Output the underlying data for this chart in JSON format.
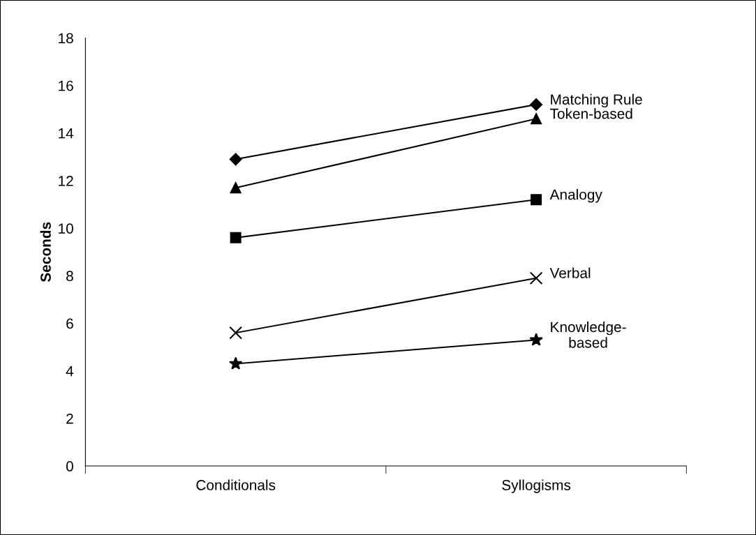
{
  "chart_data": {
    "type": "line",
    "ylabel": "Seconds",
    "categories": [
      "Conditionals",
      "Syllogisms"
    ],
    "ylim": [
      0,
      18
    ],
    "yticks": [
      0,
      2,
      4,
      6,
      8,
      10,
      12,
      14,
      16,
      18
    ],
    "grid": false,
    "legend": false,
    "series": [
      {
        "name": "Matching Rule",
        "color": "#000000",
        "marker": "diamond",
        "values": [
          12.9,
          15.2
        ]
      },
      {
        "name": "Token-based",
        "color": "#000000",
        "marker": "triangle",
        "values": [
          11.7,
          14.6
        ]
      },
      {
        "name": "Analogy",
        "color": "#000000",
        "marker": "square",
        "values": [
          9.6,
          11.2
        ]
      },
      {
        "name": "Verbal",
        "color": "#000000",
        "marker": "cross",
        "values": [
          5.6,
          7.9
        ]
      },
      {
        "name": "Knowledge-\nbased",
        "color": "#000000",
        "marker": "star",
        "values": [
          4.3,
          5.3
        ]
      }
    ]
  }
}
